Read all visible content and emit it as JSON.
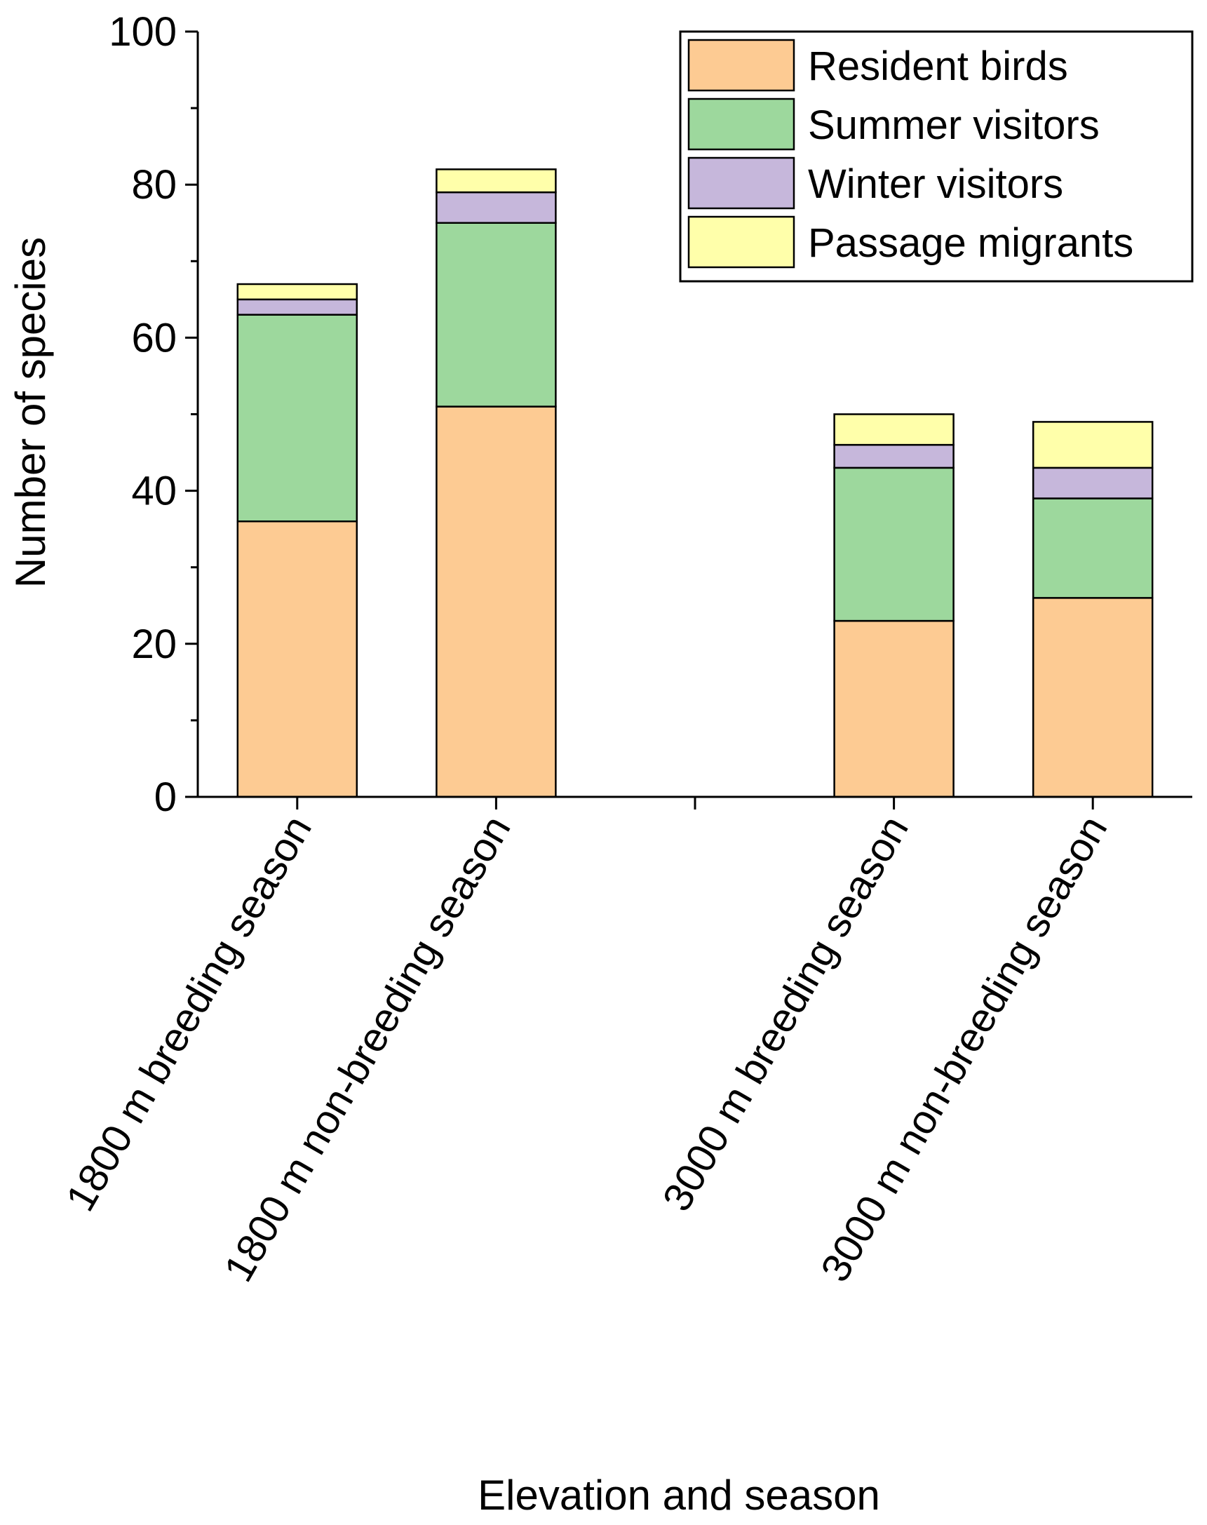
{
  "chart_data": {
    "type": "bar",
    "stacked": true,
    "title": "",
    "xlabel": "Elevation  and season",
    "ylabel": "Number of species",
    "ylim": [
      0,
      100
    ],
    "yticks": [
      "0",
      "20",
      "40",
      "60",
      "80",
      "100"
    ],
    "categories": [
      "1800 m breeding season",
      "1800 m non-breeding season",
      "",
      "3000 m breeding season",
      "3000 m non-breeding season"
    ],
    "series": [
      {
        "name": "Resident birds",
        "color": "#FDCB93",
        "values": [
          36,
          51,
          null,
          23,
          26
        ]
      },
      {
        "name": "Summer visitors",
        "color": "#9DD89D",
        "values": [
          27,
          24,
          null,
          20,
          13
        ]
      },
      {
        "name": "Winter visitors",
        "color": "#C6B7DB",
        "values": [
          2,
          4,
          null,
          3,
          4
        ]
      },
      {
        "name": "Passage migrants",
        "color": "#FFFFAA",
        "values": [
          2,
          3,
          null,
          4,
          6
        ]
      }
    ],
    "legend": "top-right",
    "grid": false
  }
}
